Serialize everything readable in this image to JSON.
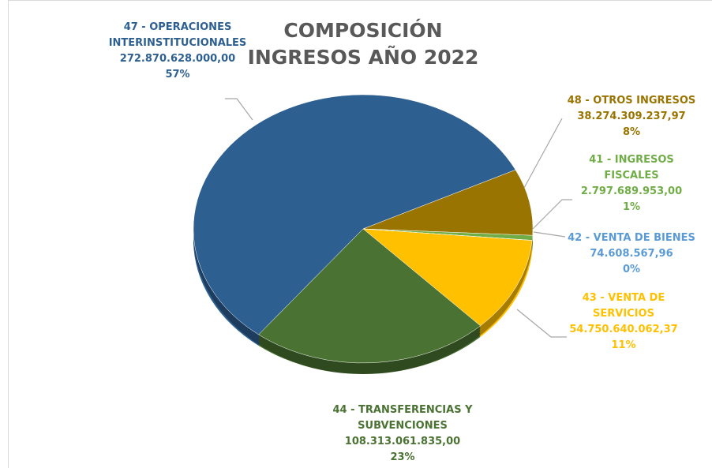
{
  "chart_data": {
    "type": "pie",
    "title": "COMPOSICIÓN INGRESOS AÑO 2022",
    "categories": [
      "47 - OPERACIONES INTERINSTITUCIONALES",
      "48 - OTROS INGRESOS",
      "41 - INGRESOS FISCALES",
      "42 - VENTA DE BIENES",
      "43 - VENTA DE SERVICIOS",
      "44 - TRANSFERENCIAS Y SUBVENCIONES"
    ],
    "values": [
      272870628000.0,
      38274309237.97,
      2797689953.0,
      74608567.96,
      54750640062.37,
      108313061835.0
    ],
    "value_labels": [
      "272.870.628.000,00",
      "38.274.309.237,97",
      "2.797.689.953,00",
      "74.608.567,96",
      "54.750.640.062,37",
      "108.313.061.835,00"
    ],
    "percent_labels": [
      "57%",
      "8%",
      "1%",
      "0%",
      "11%",
      "23%"
    ],
    "colors": [
      "#2e5f91",
      "#9a7400",
      "#70ad47",
      "#5b9bd5",
      "#ffc000",
      "#4a7232"
    ]
  }
}
